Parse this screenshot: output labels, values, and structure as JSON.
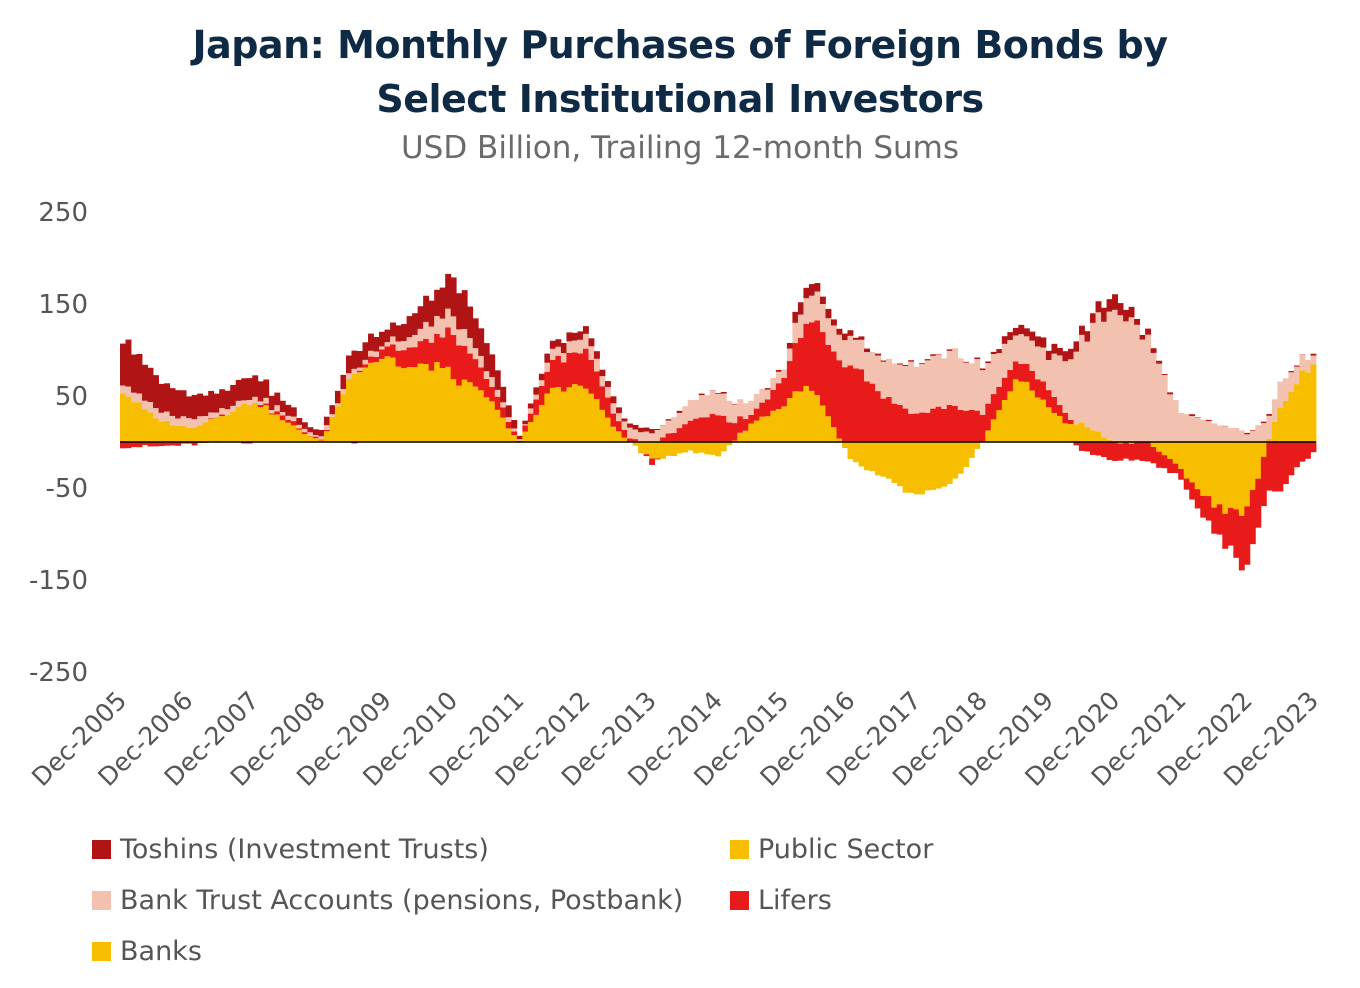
{
  "chart_data": {
    "type": "bar",
    "stacked": true,
    "title_line1": "Japan: Monthly Purchases of Foreign Bonds by",
    "title_line2": "Select Institutional Investors",
    "subtitle": "USD Billion, Trailing 12-month Sums",
    "xlabel": "",
    "ylabel": "",
    "ylim": [
      -250,
      250
    ],
    "yticks": [
      250,
      150,
      50,
      -50,
      -150,
      -250
    ],
    "x_tick_labels": [
      "Dec-2005",
      "Dec-2006",
      "Dec-2007",
      "Dec-2008",
      "Dec-2009",
      "Dec-2010",
      "Dec-2011",
      "Dec-2012",
      "Dec-2013",
      "Dec-2014",
      "Dec-2015",
      "Dec-2016",
      "Dec-2017",
      "Dec-2018",
      "Dec-2019",
      "Dec-2020",
      "Dec-2021",
      "Dec-2022",
      "Dec-2023"
    ],
    "legend_placement": "bottom",
    "grid": false,
    "series_points_note": "",
    "x_years": [
      2005.92,
      2006.42,
      2006.92,
      2007.42,
      2007.92,
      2008.42,
      2008.92,
      2009.42,
      2009.92,
      2010.17,
      2010.42,
      2010.67,
      2010.92,
      2011.42,
      2011.92,
      2012.42,
      2012.92,
      2013.42,
      2013.92,
      2014.42,
      2014.92,
      2015.42,
      2015.92,
      2016.17,
      2016.42,
      2016.92,
      2017.42,
      2017.92,
      2018.42,
      2018.92,
      2019.42,
      2019.92,
      2020.17,
      2020.42,
      2020.92,
      2021.42,
      2021.92,
      2022.42,
      2022.92,
      2023.42,
      2023.92
    ],
    "series": [
      {
        "name": "Toshins (Investment Trusts)",
        "color": "#b01414",
        "values": [
          50,
          35,
          25,
          20,
          25,
          10,
          5,
          20,
          15,
          20,
          25,
          30,
          45,
          30,
          5,
          10,
          10,
          5,
          3,
          0,
          0,
          0,
          0,
          15,
          10,
          5,
          0,
          0,
          0,
          0,
          10,
          10,
          10,
          10,
          15,
          5,
          0,
          0,
          0,
          0,
          0
        ]
      },
      {
        "name": "Bank Trust Accounts (pensions, Postbank)",
        "color": "#f2c1b0",
        "values": [
          10,
          10,
          10,
          5,
          5,
          5,
          3,
          5,
          5,
          10,
          15,
          20,
          20,
          10,
          2,
          10,
          15,
          10,
          10,
          20,
          25,
          15,
          10,
          25,
          30,
          30,
          40,
          55,
          60,
          50,
          30,
          35,
          60,
          90,
          150,
          110,
          30,
          20,
          10,
          30,
          10
        ]
      },
      {
        "name": "Lifers",
        "color": "#e81a1a",
        "values": [
          -5,
          -5,
          -3,
          0,
          0,
          5,
          0,
          0,
          10,
          20,
          25,
          30,
          45,
          20,
          0,
          30,
          40,
          10,
          -5,
          20,
          30,
          10,
          30,
          60,
          80,
          90,
          50,
          30,
          40,
          30,
          20,
          20,
          10,
          -10,
          -20,
          -20,
          -10,
          -30,
          -60,
          -50,
          -10
        ]
      },
      {
        "name": "Banks",
        "color": "#f7be00",
        "values": [
          55,
          25,
          15,
          30,
          45,
          20,
          0,
          80,
          95,
          80,
          80,
          85,
          70,
          50,
          0,
          60,
          60,
          10,
          -20,
          -10,
          -15,
          20,
          40,
          60,
          50,
          -20,
          -40,
          -60,
          -50,
          0,
          70,
          40,
          20,
          20,
          0,
          0,
          -30,
          -70,
          -75,
          40,
          90
        ]
      },
      {
        "name": "Public Sector",
        "color": "#f7be00",
        "values": [
          0,
          0,
          0,
          0,
          0,
          0,
          0,
          0,
          0,
          0,
          0,
          0,
          0,
          0,
          0,
          0,
          0,
          0,
          0,
          0,
          0,
          0,
          0,
          0,
          0,
          0,
          0,
          0,
          0,
          0,
          0,
          0,
          0,
          0,
          0,
          0,
          0,
          0,
          0,
          0,
          0
        ]
      }
    ]
  },
  "legend": {
    "toshins": "Toshins (Investment Trusts)",
    "public_sector": "Public Sector",
    "bank_trust": "Bank Trust Accounts (pensions, Postbank)",
    "lifers": "Lifers",
    "banks": "Banks"
  },
  "colors": {
    "toshins": "#b01414",
    "bank_trust": "#f2c1b0",
    "lifers": "#e81a1a",
    "banks": "#f7be00",
    "public_sector": "#f7be00",
    "title": "#0f2a44",
    "axis_text": "#555555"
  }
}
